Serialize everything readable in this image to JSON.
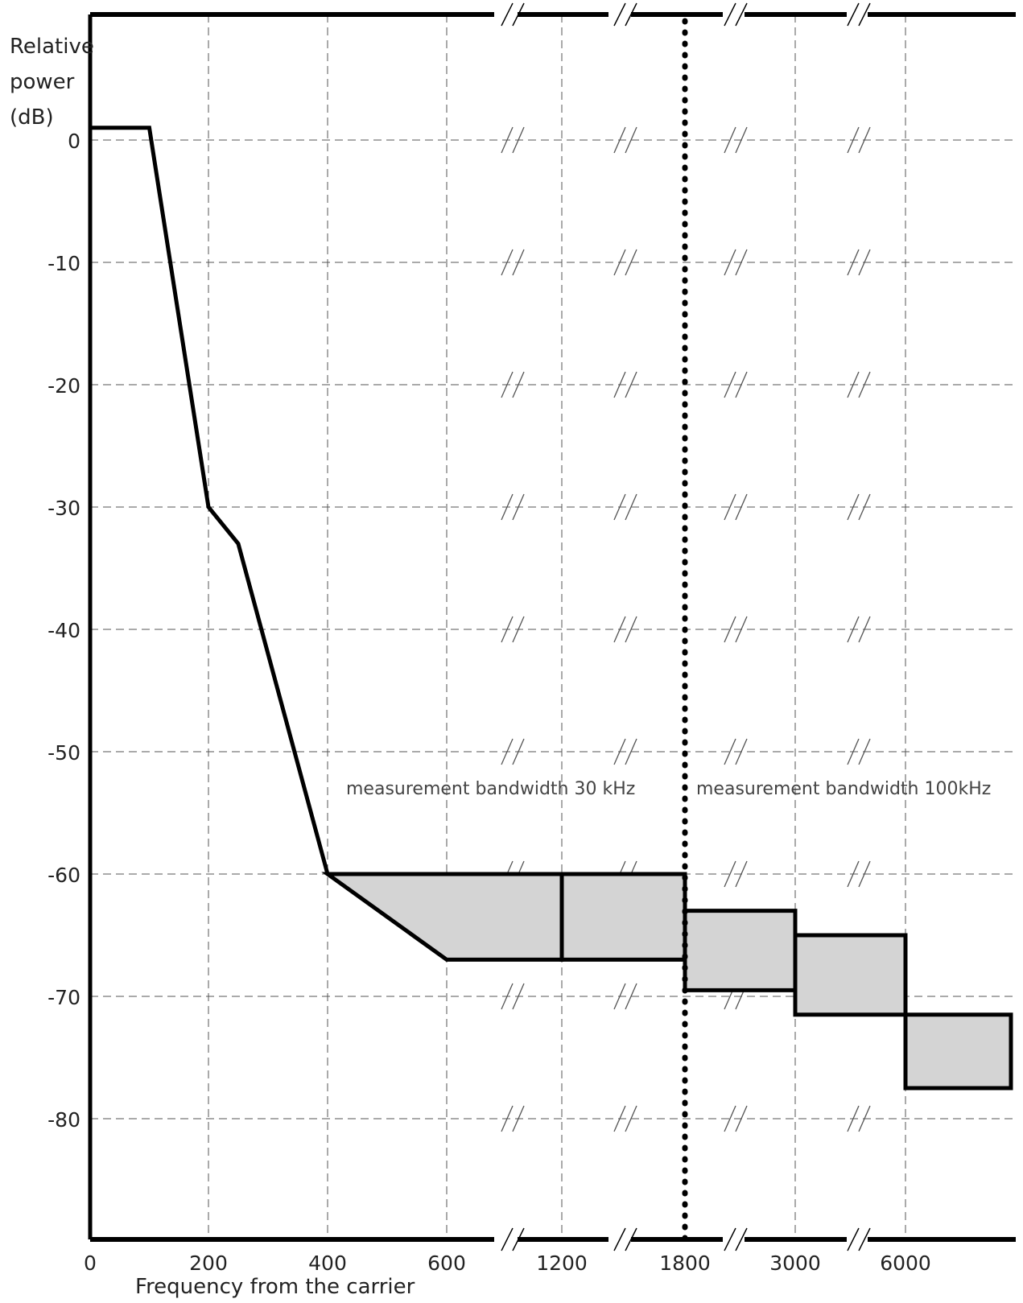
{
  "chart_data": {
    "type": "line",
    "y_axis_label_lines": [
      "Relative",
      "power",
      "(dB)"
    ],
    "xlabel": "Frequency from the carrier",
    "x_ticks": [
      "0",
      "200",
      "400",
      "600",
      "1200",
      "1800",
      "3000",
      "6000"
    ],
    "y_ticks": [
      0,
      -10,
      -20,
      -30,
      -40,
      -50,
      -60,
      -70,
      -80
    ],
    "ylim": [
      -90,
      10
    ],
    "grid": true,
    "broken_x_axis": true,
    "mask_curve": {
      "x": [
        0,
        100,
        200,
        250,
        400
      ],
      "y": [
        1,
        1,
        -30,
        -33,
        -60
      ]
    },
    "shaded_regions": [
      {
        "x": [
          400,
          600,
          1200
        ],
        "upper": [
          -60,
          -60,
          -60
        ],
        "lower": [
          -60,
          -67,
          -67
        ]
      },
      {
        "x": [
          1200,
          1800
        ],
        "upper": [
          -60,
          -60
        ],
        "lower": [
          -67,
          -67
        ]
      },
      {
        "x": [
          1800,
          3000
        ],
        "upper": [
          -63,
          -63
        ],
        "lower": [
          -69.5,
          -69.5
        ]
      },
      {
        "x": [
          3000,
          6000
        ],
        "upper": [
          -65,
          -65
        ],
        "lower": [
          -71.5,
          -71.5
        ]
      },
      {
        "x": [
          6000,
          "end"
        ],
        "upper": [
          -71.5,
          -71.5
        ],
        "lower": [
          -77.5,
          -77.5
        ]
      }
    ],
    "divider_x": 1800,
    "annotations": [
      {
        "text": "measurement bandwidth 30 kHz"
      },
      {
        "text": "measurement bandwidth 100kHz"
      }
    ]
  }
}
